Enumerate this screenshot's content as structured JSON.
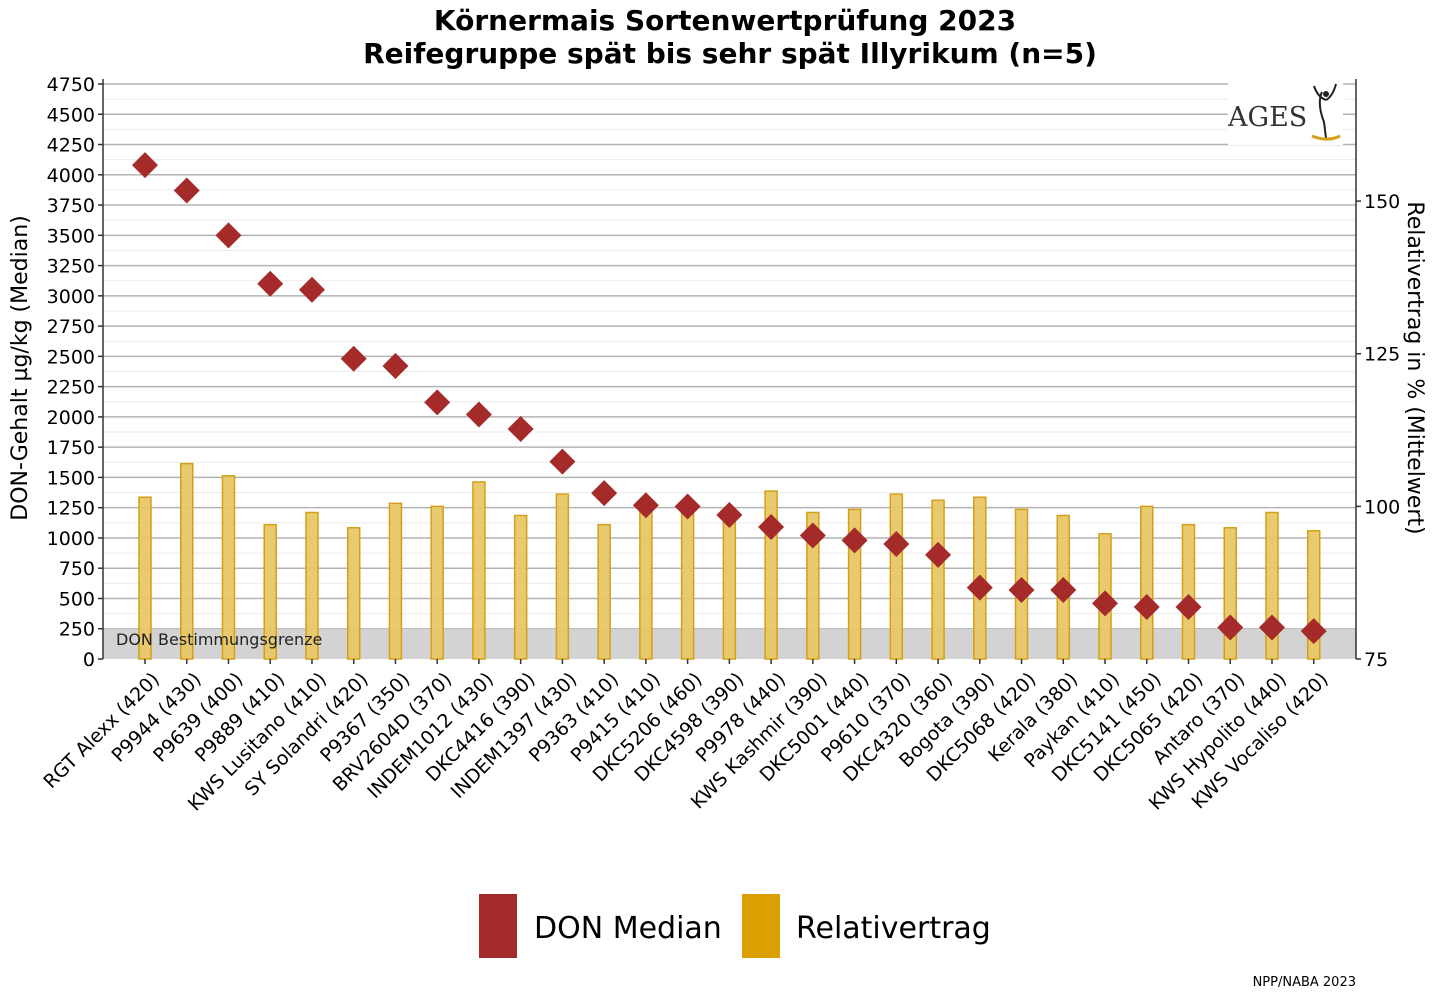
{
  "chart_data": {
    "type": "bar",
    "title": "Körnermais Sortenwertprüfung 2023",
    "subtitle": "Reifegruppe spät bis sehr spät Illyrikum (n=5)",
    "ylabel_left": "DON-Gehalt µg/kg (Median)",
    "ylabel_right": "Relativertrag in % (Mittelwert)",
    "ylim_left": [
      0,
      4750
    ],
    "yticks_left": [
      0,
      250,
      500,
      750,
      1000,
      1250,
      1500,
      1750,
      2000,
      2250,
      2500,
      2750,
      3000,
      3250,
      3500,
      3750,
      4000,
      4250,
      4500,
      4750
    ],
    "ylim_right": [
      75,
      170
    ],
    "yticks_right": [
      75,
      100,
      125,
      150
    ],
    "grid": true,
    "legend_position": "bottom",
    "categories": [
      "RGT Alexx (420)",
      "P9944 (430)",
      "P9639 (400)",
      "P9889 (410)",
      "KWS Lusitano (410)",
      "SY Solandri (420)",
      "P9367 (350)",
      "BRV2604D (370)",
      "INDEM1012 (430)",
      "DKC4416 (390)",
      "INDEM1397 (430)",
      "P9363 (410)",
      "P9415 (410)",
      "DKC5206 (460)",
      "DKC4598 (390)",
      "P9978 (440)",
      "KWS Kashmir (390)",
      "DKC5001 (440)",
      "P9610 (370)",
      "DKC4320 (360)",
      "Bogota (390)",
      "DKC5068 (420)",
      "Kerala (380)",
      "Paykan (410)",
      "DKC5141 (450)",
      "DKC5065 (420)",
      "Antaro (370)",
      "KWS Hypolito (440)",
      "KWS Vocaliso (420)"
    ],
    "series": [
      {
        "name": "DON Median",
        "type": "scatter",
        "axis": "left",
        "color": "#A52A2A",
        "values": [
          4080,
          3870,
          3500,
          3100,
          3050,
          2480,
          2420,
          2120,
          2020,
          1900,
          1630,
          1370,
          1270,
          1260,
          1190,
          1090,
          1020,
          980,
          950,
          860,
          590,
          570,
          570,
          460,
          430,
          430,
          260,
          260,
          230
        ]
      },
      {
        "name": "Relativertrag",
        "type": "bar",
        "axis": "right",
        "color": "#E8C766",
        "stroke": "#D4A017",
        "values": [
          101.5,
          107,
          105,
          97,
          99,
          96.5,
          100.5,
          100,
          104,
          98.5,
          102,
          97,
          100.5,
          100,
          99,
          102.5,
          99,
          99.5,
          102,
          101,
          101.5,
          99.5,
          98.5,
          95.5,
          100,
          97,
          96.5,
          99,
          96
        ]
      }
    ],
    "annotations": {
      "band_label": "DON Bestimmungsgrenze",
      "band_value": 250
    }
  },
  "legend": {
    "don_label": "DON Median",
    "yield_label": "Relativertrag",
    "don_color": "#A52A2A",
    "yield_color": "#DAA000"
  },
  "logo": {
    "text": "AGES"
  },
  "credit": "NPP/NABA 2023"
}
